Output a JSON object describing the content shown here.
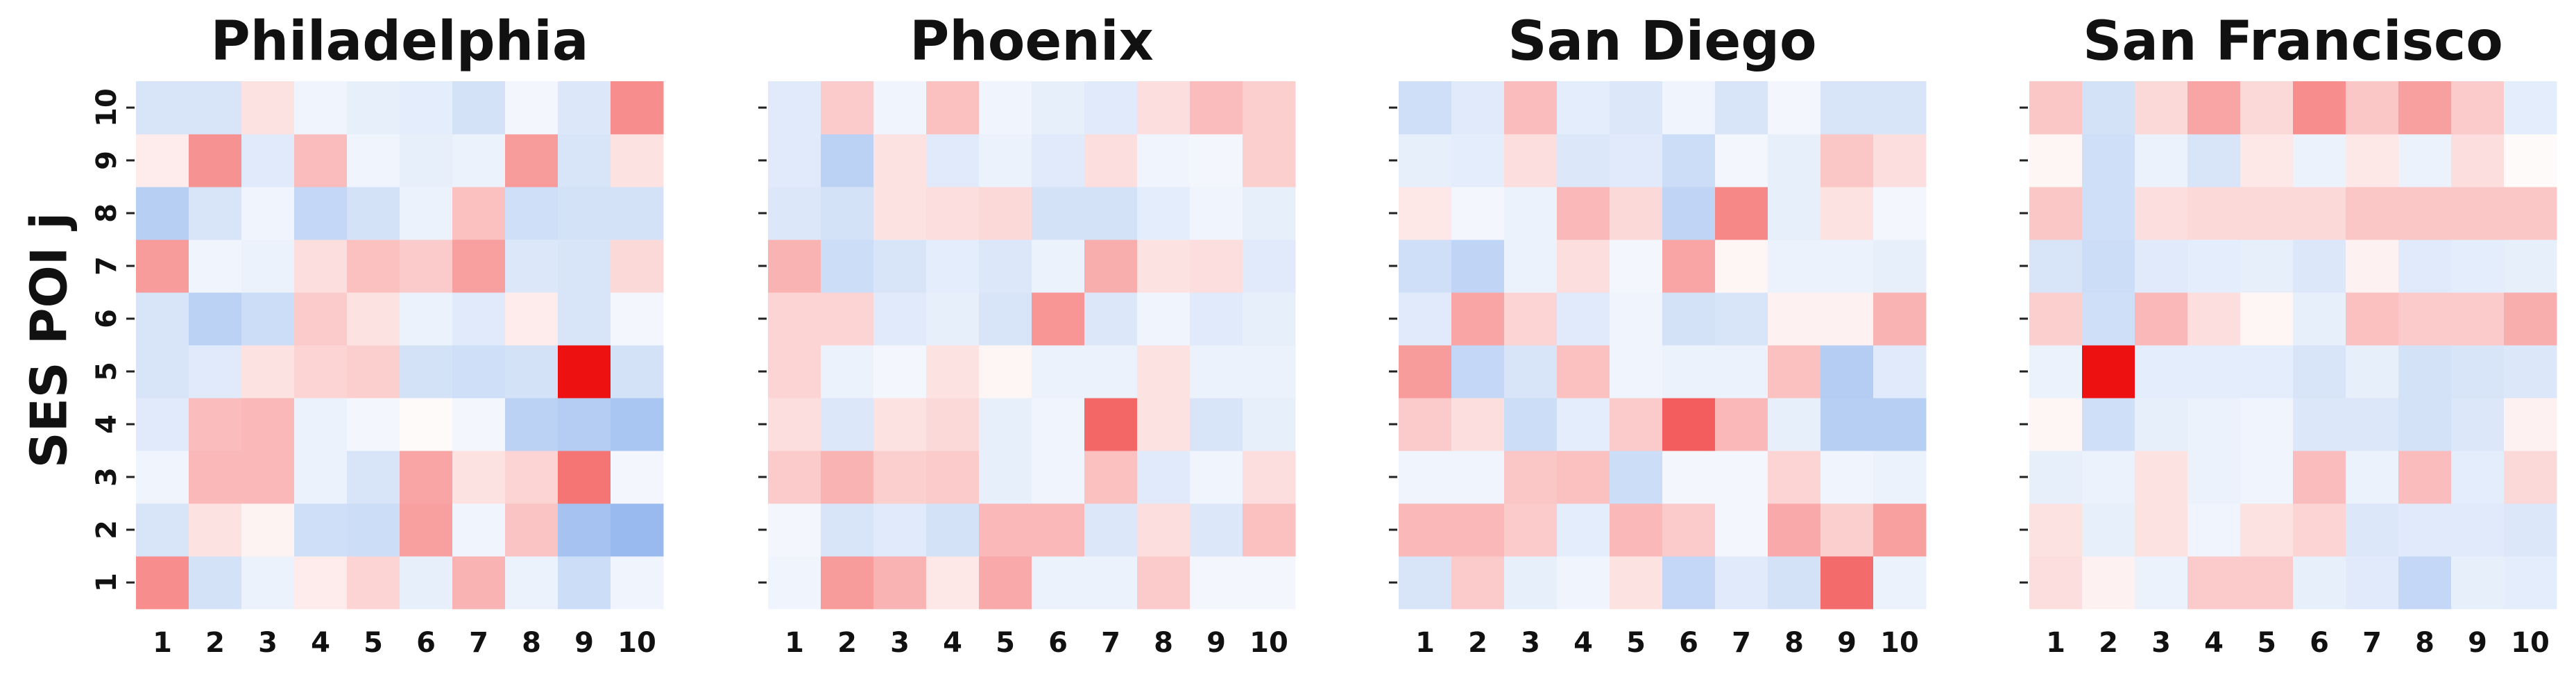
{
  "figure": {
    "ylabel": "SES POI j"
  },
  "color_scale": {
    "negative": "#3b7be0",
    "neutral": "#ffffff",
    "positive": "#ee1111"
  },
  "chart_data": [
    {
      "type": "heatmap",
      "title": "Philadelphia",
      "x_labels": [
        "1",
        "2",
        "3",
        "4",
        "5",
        "6",
        "7",
        "8",
        "9",
        "10"
      ],
      "y_labels": [
        "1",
        "2",
        "3",
        "4",
        "5",
        "6",
        "7",
        "8",
        "9",
        "10"
      ],
      "ylabel": "SES POI j",
      "values": [
        [
          0.48,
          -0.22,
          -0.1,
          0.08,
          0.18,
          -0.12,
          0.32,
          -0.1,
          -0.26,
          -0.08
        ],
        [
          -0.2,
          0.12,
          0.05,
          -0.24,
          -0.26,
          0.4,
          -0.08,
          0.25,
          -0.46,
          -0.52
        ],
        [
          -0.08,
          0.3,
          0.3,
          -0.1,
          -0.2,
          0.38,
          0.12,
          0.18,
          0.58,
          -0.06
        ],
        [
          -0.16,
          0.28,
          0.3,
          -0.1,
          -0.06,
          0.02,
          -0.06,
          -0.34,
          -0.38,
          -0.44
        ],
        [
          -0.2,
          -0.16,
          0.12,
          0.18,
          0.2,
          -0.22,
          -0.24,
          -0.22,
          1.0,
          -0.22
        ],
        [
          -0.2,
          -0.34,
          -0.26,
          0.22,
          0.12,
          -0.1,
          -0.16,
          0.08,
          -0.2,
          -0.06
        ],
        [
          0.42,
          -0.08,
          -0.1,
          0.14,
          0.26,
          0.22,
          0.4,
          -0.18,
          -0.2,
          0.16
        ],
        [
          -0.36,
          -0.2,
          -0.08,
          -0.3,
          -0.22,
          -0.1,
          0.26,
          -0.24,
          -0.22,
          -0.22
        ],
        [
          0.08,
          0.46,
          -0.16,
          0.28,
          -0.08,
          -0.12,
          -0.1,
          0.42,
          -0.2,
          0.12
        ],
        [
          -0.2,
          -0.2,
          0.12,
          -0.08,
          -0.12,
          -0.14,
          -0.22,
          -0.06,
          -0.18,
          0.48
        ]
      ]
    },
    {
      "type": "heatmap",
      "title": "Phoenix",
      "x_labels": [
        "1",
        "2",
        "3",
        "4",
        "5",
        "6",
        "7",
        "8",
        "9",
        "10"
      ],
      "y_labels": [
        "1",
        "2",
        "3",
        "4",
        "5",
        "6",
        "7",
        "8",
        "9",
        "10"
      ],
      "values": [
        [
          -0.08,
          0.42,
          0.32,
          0.1,
          0.36,
          -0.1,
          -0.1,
          0.22,
          -0.06,
          -0.06
        ],
        [
          -0.06,
          -0.2,
          -0.16,
          -0.22,
          0.3,
          0.3,
          -0.18,
          0.14,
          -0.18,
          0.26
        ],
        [
          0.22,
          0.32,
          0.2,
          0.22,
          -0.12,
          -0.08,
          0.26,
          -0.16,
          -0.08,
          0.14
        ],
        [
          0.14,
          -0.18,
          0.12,
          0.16,
          -0.12,
          -0.08,
          0.64,
          0.12,
          -0.2,
          -0.12
        ],
        [
          0.18,
          -0.1,
          -0.06,
          0.12,
          0.04,
          -0.1,
          -0.1,
          0.12,
          -0.1,
          -0.1
        ],
        [
          0.18,
          0.18,
          -0.16,
          -0.12,
          -0.2,
          0.44,
          -0.18,
          -0.08,
          -0.16,
          -0.12
        ],
        [
          0.32,
          -0.26,
          -0.2,
          -0.14,
          -0.18,
          -0.1,
          0.34,
          0.12,
          0.14,
          -0.16
        ],
        [
          -0.18,
          -0.22,
          0.12,
          0.14,
          0.16,
          -0.22,
          -0.22,
          -0.14,
          -0.08,
          -0.12
        ],
        [
          -0.16,
          -0.34,
          0.12,
          -0.16,
          -0.1,
          -0.16,
          0.14,
          -0.08,
          -0.06,
          0.2
        ],
        [
          -0.16,
          0.22,
          -0.08,
          0.26,
          -0.08,
          -0.12,
          -0.16,
          0.14,
          0.28,
          0.2
        ]
      ]
    },
    {
      "type": "heatmap",
      "title": "San Diego",
      "x_labels": [
        "1",
        "2",
        "3",
        "4",
        "5",
        "6",
        "7",
        "8",
        "9",
        "10"
      ],
      "y_labels": [
        "1",
        "2",
        "3",
        "4",
        "5",
        "6",
        "7",
        "8",
        "9",
        "10"
      ],
      "values": [
        [
          -0.2,
          0.22,
          -0.12,
          -0.08,
          0.12,
          -0.3,
          -0.16,
          -0.22,
          0.62,
          -0.1
        ],
        [
          0.3,
          0.3,
          0.22,
          -0.14,
          0.3,
          0.22,
          -0.06,
          0.36,
          0.2,
          0.4
        ],
        [
          -0.08,
          -0.08,
          0.24,
          0.26,
          -0.26,
          -0.06,
          -0.06,
          0.18,
          -0.08,
          -0.1
        ],
        [
          0.22,
          0.14,
          -0.26,
          -0.14,
          0.22,
          0.68,
          0.3,
          -0.12,
          -0.36,
          -0.36
        ],
        [
          0.42,
          -0.3,
          -0.2,
          0.26,
          -0.08,
          -0.1,
          -0.1,
          0.26,
          -0.38,
          -0.16
        ],
        [
          -0.16,
          0.38,
          0.18,
          -0.16,
          -0.08,
          -0.22,
          -0.2,
          0.06,
          0.06,
          0.32
        ],
        [
          -0.24,
          -0.32,
          -0.1,
          0.14,
          -0.06,
          0.38,
          0.04,
          -0.1,
          -0.1,
          -0.12
        ],
        [
          0.1,
          -0.06,
          -0.1,
          0.3,
          0.16,
          -0.32,
          0.5,
          -0.12,
          0.12,
          -0.06
        ],
        [
          -0.12,
          -0.14,
          0.14,
          -0.18,
          -0.16,
          -0.26,
          -0.06,
          -0.12,
          0.24,
          0.14
        ],
        [
          -0.24,
          -0.16,
          0.28,
          -0.14,
          -0.18,
          -0.08,
          -0.2,
          -0.06,
          -0.2,
          -0.2
        ]
      ]
    },
    {
      "type": "heatmap",
      "title": "San Francisco",
      "x_labels": [
        "1",
        "2",
        "3",
        "4",
        "5",
        "6",
        "7",
        "8",
        "9",
        "10"
      ],
      "y_labels": [
        "1",
        "2",
        "3",
        "4",
        "5",
        "6",
        "7",
        "8",
        "9",
        "10"
      ],
      "values": [
        [
          0.14,
          0.06,
          -0.1,
          0.22,
          0.22,
          -0.12,
          -0.16,
          -0.3,
          -0.12,
          -0.14
        ],
        [
          0.12,
          -0.12,
          0.12,
          -0.08,
          0.12,
          0.18,
          -0.18,
          -0.16,
          -0.16,
          -0.18
        ],
        [
          -0.12,
          -0.1,
          0.12,
          -0.1,
          -0.08,
          0.28,
          -0.1,
          0.28,
          -0.14,
          0.16
        ],
        [
          0.04,
          -0.24,
          -0.12,
          -0.1,
          -0.08,
          -0.18,
          -0.18,
          -0.22,
          -0.18,
          0.06
        ],
        [
          -0.1,
          1.1,
          -0.14,
          -0.14,
          -0.14,
          -0.2,
          -0.12,
          -0.22,
          -0.2,
          -0.18
        ],
        [
          0.2,
          -0.24,
          0.3,
          0.14,
          0.04,
          -0.12,
          0.26,
          0.22,
          0.22,
          0.34
        ],
        [
          -0.2,
          -0.26,
          -0.16,
          -0.14,
          -0.12,
          -0.18,
          0.06,
          -0.16,
          -0.14,
          -0.12
        ],
        [
          0.24,
          -0.24,
          0.14,
          0.16,
          0.16,
          0.16,
          0.24,
          0.24,
          0.24,
          0.24
        ],
        [
          0.04,
          -0.24,
          -0.1,
          -0.2,
          0.1,
          -0.1,
          0.1,
          -0.1,
          0.14,
          0.02
        ],
        [
          0.24,
          -0.22,
          0.16,
          0.38,
          0.16,
          0.48,
          0.24,
          0.4,
          0.22,
          -0.14
        ]
      ]
    }
  ]
}
